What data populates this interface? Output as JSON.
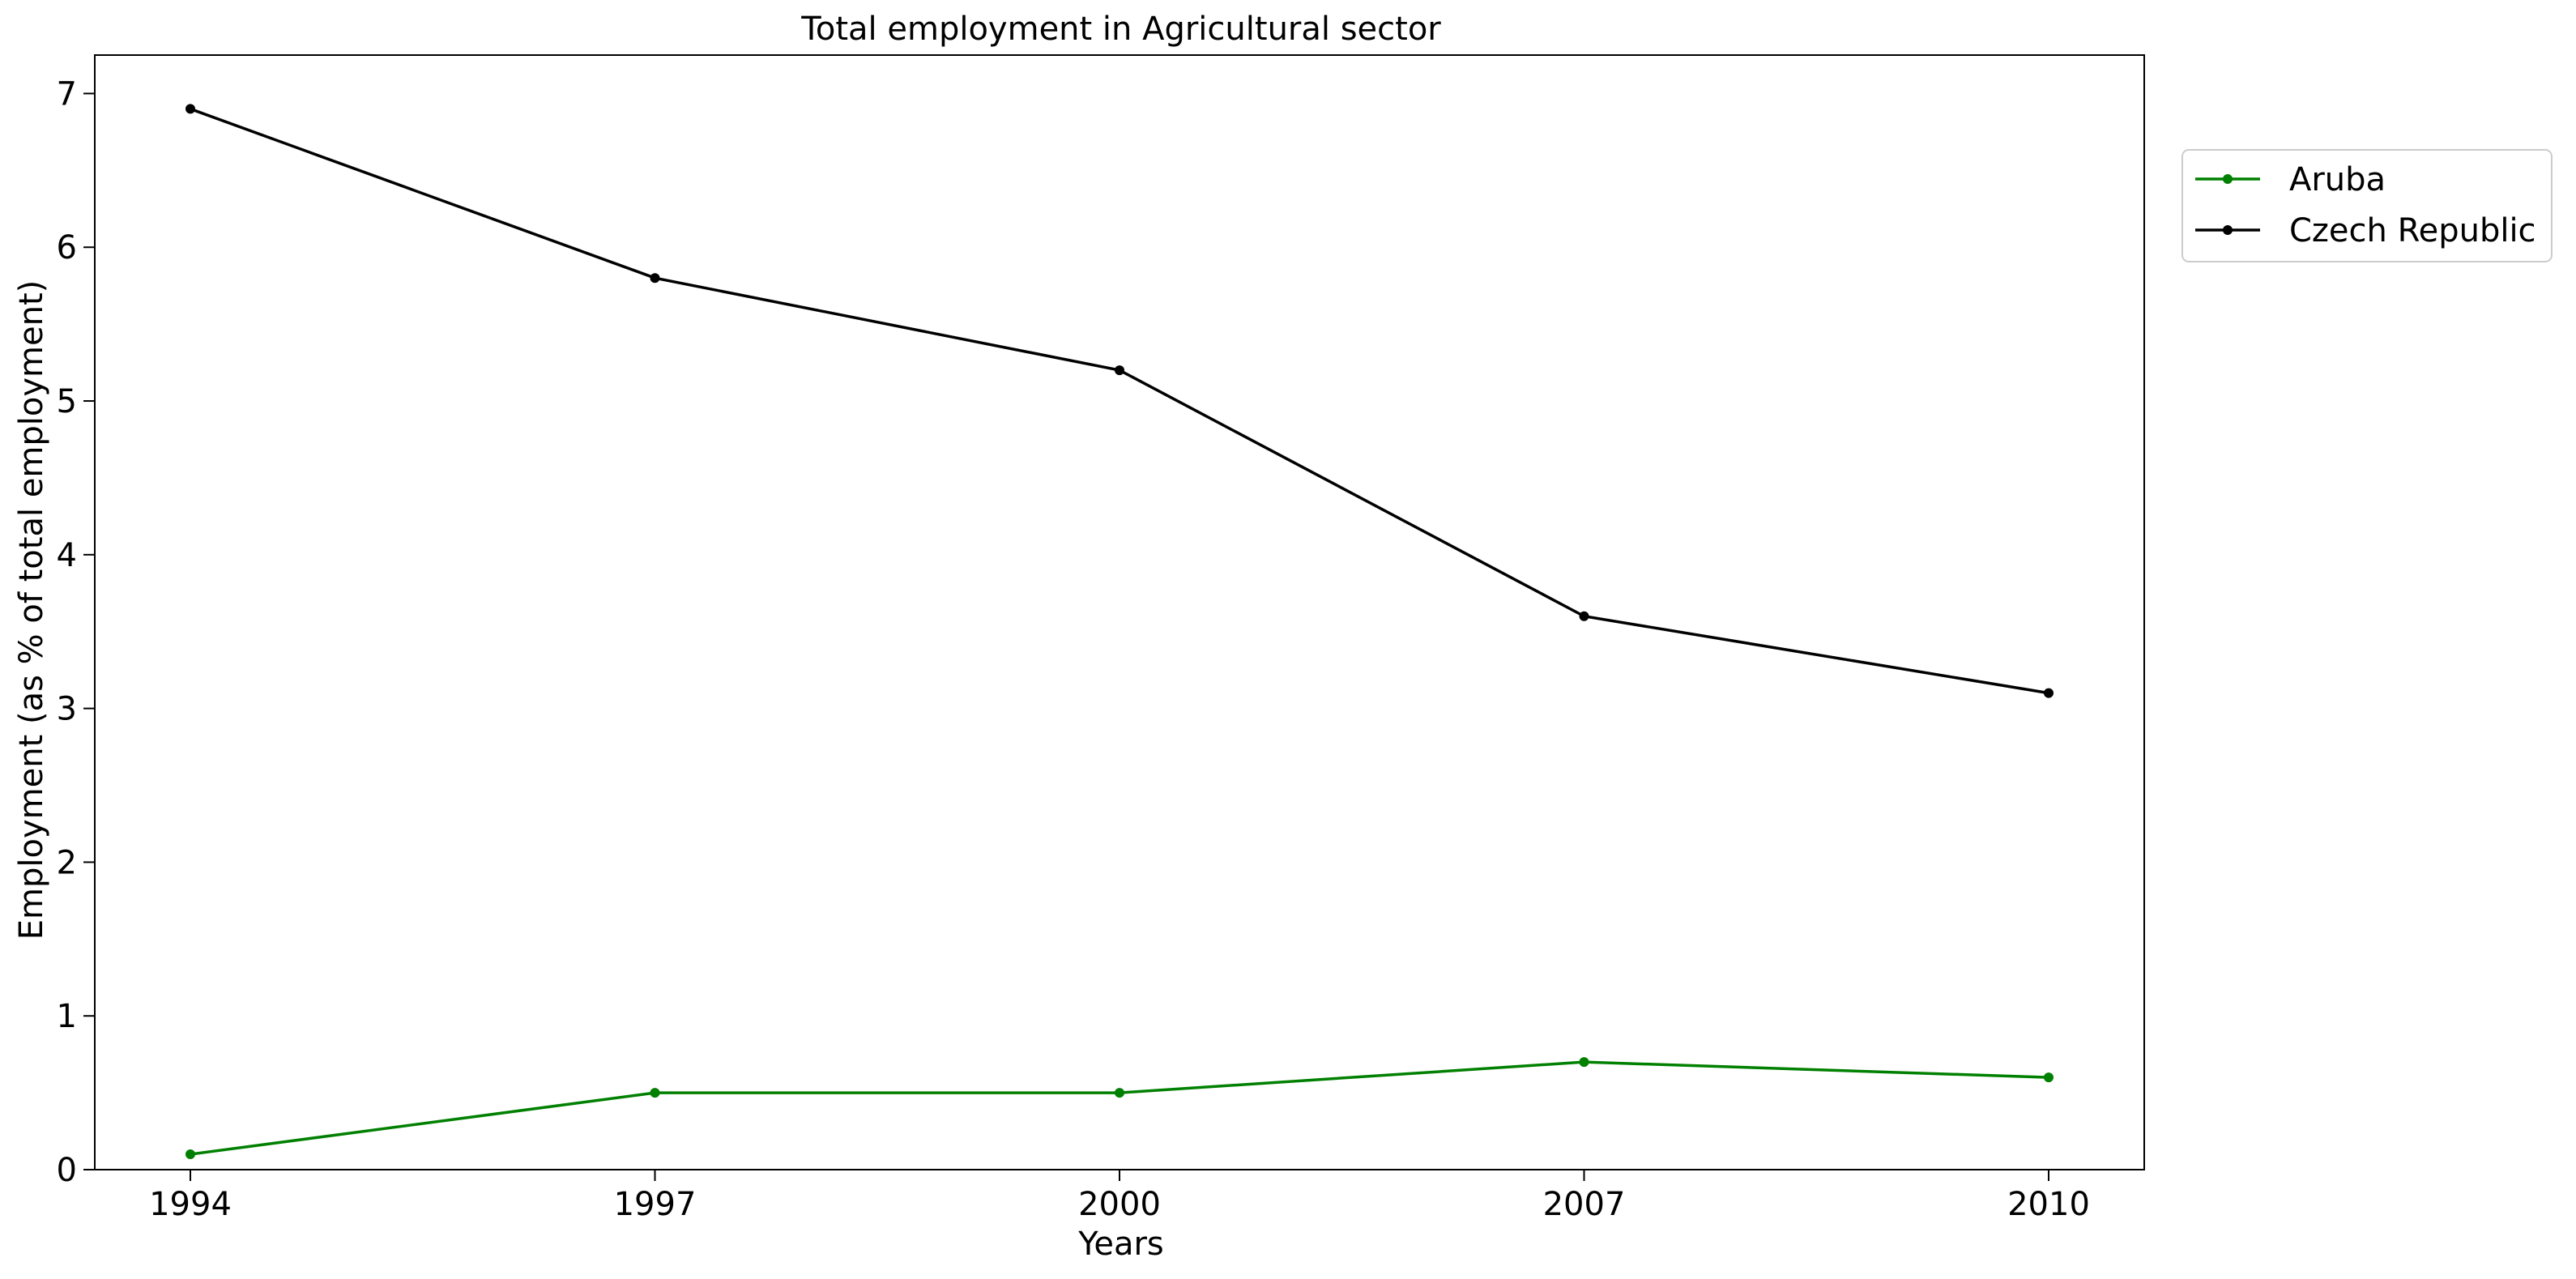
{
  "chart_data": {
    "type": "line",
    "title": "Total employment in Agricultural sector",
    "xlabel": "Years",
    "ylabel": "Employment (as % of total employment)",
    "categories": [
      "1994",
      "1997",
      "2000",
      "2007",
      "2010"
    ],
    "ylim": [
      0,
      7.25
    ],
    "yticks": [
      0,
      1,
      2,
      3,
      4,
      5,
      6,
      7
    ],
    "grid": false,
    "legend_position": "outside-top-right",
    "series": [
      {
        "name": "Aruba",
        "color": "#008000",
        "values": [
          0.1,
          0.5,
          0.5,
          0.7,
          0.6
        ]
      },
      {
        "name": "Czech Republic",
        "color": "#000000",
        "values": [
          6.9,
          5.8,
          5.2,
          3.6,
          3.1
        ]
      }
    ]
  }
}
